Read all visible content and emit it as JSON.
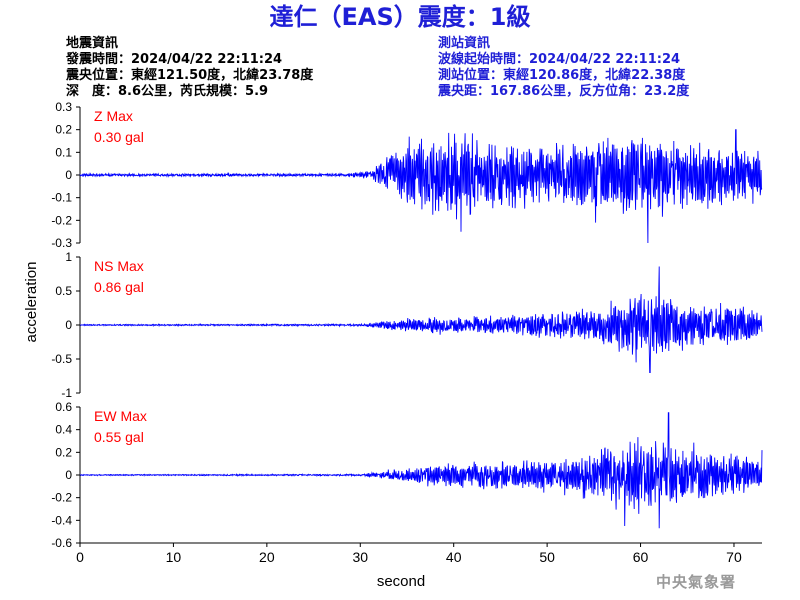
{
  "title": "達仁（EAS）震度：1級",
  "earthquake_info": {
    "heading": "地震資訊",
    "origin_time": "發震時間：2024/04/22 22:11:24",
    "epicenter": "震央位置：東經121.50度，北緯23.78度",
    "depth_magnitude": "深　度：8.6公里，芮氏規模：5.9"
  },
  "station_info": {
    "heading": "測站資訊",
    "wave_start": "波線起始時間：2024/04/22 22:11:24",
    "station_location": "測站位置：東經120.86度，北緯22.38度",
    "epicentral_distance": "震央距：167.86公里，反方位角：23.2度"
  },
  "agency": "中央氣象署",
  "colors": {
    "title": "#1f1fd6",
    "trace": "#0000ff",
    "max_label": "#ff0000",
    "axis": "#000000",
    "agency": "#9a9a9a"
  },
  "chart_data": {
    "type": "line",
    "xlabel": "second",
    "ylabel": "acceleration",
    "xlim": [
      0,
      73
    ],
    "x_ticks": [
      0,
      10,
      20,
      30,
      40,
      50,
      60,
      70
    ],
    "grid": false,
    "series": [
      {
        "name": "Z",
        "max_label": "Z Max",
        "max_value": "0.30 gal",
        "ylim": [
          -0.3,
          0.3
        ],
        "y_ticks": [
          -0.3,
          -0.2,
          -0.1,
          0,
          0.1,
          0.2,
          0.3
        ],
        "y_tick_labels": [
          "-0.3",
          "-0.2",
          "-0.1",
          "0",
          "0.1",
          "0.2",
          "0.3"
        ],
        "envelope": [
          [
            0,
            0.006
          ],
          [
            28,
            0.006
          ],
          [
            30,
            0.012
          ],
          [
            31.5,
            0.03
          ],
          [
            33,
            0.09
          ],
          [
            35,
            0.16
          ],
          [
            38,
            0.17
          ],
          [
            40,
            0.19
          ],
          [
            45,
            0.15
          ],
          [
            50,
            0.13
          ],
          [
            55,
            0.15
          ],
          [
            60,
            0.18
          ],
          [
            62,
            0.16
          ],
          [
            65,
            0.15
          ],
          [
            70,
            0.14
          ],
          [
            73,
            0.1
          ]
        ],
        "peaks": [
          [
            40.8,
            -0.25
          ],
          [
            55.2,
            -0.21
          ],
          [
            60.8,
            -0.3
          ],
          [
            70.2,
            0.2
          ]
        ],
        "end_value": -0.06
      },
      {
        "name": "NS",
        "max_label": "NS Max",
        "max_value": "0.86 gal",
        "ylim": [
          -1,
          1
        ],
        "y_ticks": [
          -1,
          -0.5,
          0,
          0.5,
          1
        ],
        "y_tick_labels": [
          "-1",
          "-0.5",
          "0",
          "0.5",
          "1"
        ],
        "envelope": [
          [
            0,
            0.01
          ],
          [
            30,
            0.015
          ],
          [
            33,
            0.07
          ],
          [
            38,
            0.12
          ],
          [
            45,
            0.15
          ],
          [
            50,
            0.2
          ],
          [
            55,
            0.25
          ],
          [
            58,
            0.4
          ],
          [
            60,
            0.5
          ],
          [
            62,
            0.55
          ],
          [
            65,
            0.35
          ],
          [
            70,
            0.3
          ],
          [
            73,
            0.2
          ]
        ],
        "peaks": [
          [
            62.0,
            0.86
          ],
          [
            61.0,
            -0.7
          ],
          [
            59.5,
            -0.55
          ]
        ],
        "end_value": -0.1
      },
      {
        "name": "EW",
        "max_label": "EW Max",
        "max_value": "0.55 gal",
        "ylim": [
          -0.6,
          0.6
        ],
        "y_ticks": [
          -0.6,
          -0.4,
          -0.2,
          0,
          0.2,
          0.4,
          0.6
        ],
        "y_tick_labels": [
          "-0.6",
          "-0.4",
          "-0.2",
          "0",
          "0.2",
          "0.4",
          "0.6"
        ],
        "envelope": [
          [
            0,
            0.005
          ],
          [
            30,
            0.008
          ],
          [
            33,
            0.04
          ],
          [
            38,
            0.1
          ],
          [
            45,
            0.12
          ],
          [
            50,
            0.14
          ],
          [
            55,
            0.2
          ],
          [
            58,
            0.3
          ],
          [
            62,
            0.32
          ],
          [
            65,
            0.26
          ],
          [
            70,
            0.2
          ],
          [
            73,
            0.15
          ]
        ],
        "peaks": [
          [
            63.0,
            0.55
          ],
          [
            62.0,
            -0.47
          ],
          [
            58.3,
            -0.45
          ]
        ],
        "end_value": 0.22
      }
    ]
  }
}
